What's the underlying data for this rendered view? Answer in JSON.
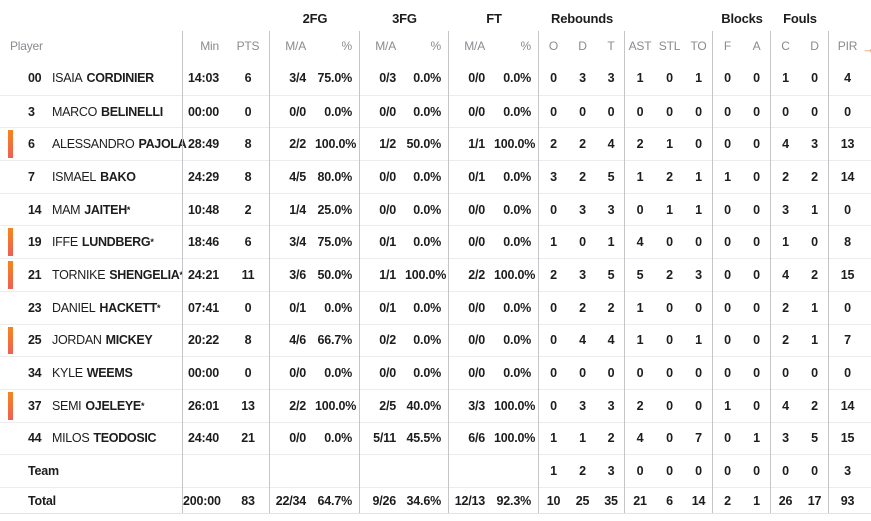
{
  "table": {
    "accent_color": "#f6851c",
    "group_headers": {
      "fg2": "2FG",
      "fg3": "3FG",
      "ft": "FT",
      "rebounds": "Rebounds",
      "blocks": "Blocks",
      "fouls": "Fouls"
    },
    "column_headers": {
      "player": "Player",
      "min": "Min",
      "pts": "PTS",
      "fg2_ma": "M/A",
      "fg2_pct": "%",
      "fg3_ma": "M/A",
      "fg3_pct": "%",
      "ft_ma": "M/A",
      "ft_pct": "%",
      "reb_o": "O",
      "reb_d": "D",
      "reb_t": "T",
      "ast": "AST",
      "stl": "STL",
      "to": "TO",
      "blk_f": "F",
      "blk_a": "A",
      "foul_c": "C",
      "foul_d": "D",
      "pir": "PIR"
    },
    "icons": {
      "scroll_right": "→"
    },
    "rows": [
      {
        "number": "00",
        "first": "ISAIA",
        "last": "CORDINIER",
        "star": "",
        "starter": false,
        "min": "14:03",
        "pts": "6",
        "fg2_ma": "3/4",
        "fg2_pct": "75.0%",
        "fg3_ma": "0/3",
        "fg3_pct": "0.0%",
        "ft_ma": "0/0",
        "ft_pct": "0.0%",
        "o": "0",
        "d": "3",
        "t": "3",
        "ast": "1",
        "stl": "0",
        "to": "1",
        "f": "0",
        "a": "0",
        "c": "1",
        "fd": "0",
        "pir": "4"
      },
      {
        "number": "3",
        "first": "MARCO",
        "last": "BELINELLI",
        "star": "",
        "starter": false,
        "min": "00:00",
        "pts": "0",
        "fg2_ma": "0/0",
        "fg2_pct": "0.0%",
        "fg3_ma": "0/0",
        "fg3_pct": "0.0%",
        "ft_ma": "0/0",
        "ft_pct": "0.0%",
        "o": "0",
        "d": "0",
        "t": "0",
        "ast": "0",
        "stl": "0",
        "to": "0",
        "f": "0",
        "a": "0",
        "c": "0",
        "fd": "0",
        "pir": "0"
      },
      {
        "number": "6",
        "first": "ALESSANDRO",
        "last": "PAJOLA",
        "star": "",
        "starter": true,
        "min": "28:49",
        "pts": "8",
        "fg2_ma": "2/2",
        "fg2_pct": "100.0%",
        "fg3_ma": "1/2",
        "fg3_pct": "50.0%",
        "ft_ma": "1/1",
        "ft_pct": "100.0%",
        "o": "2",
        "d": "2",
        "t": "4",
        "ast": "2",
        "stl": "1",
        "to": "0",
        "f": "0",
        "a": "0",
        "c": "4",
        "fd": "3",
        "pir": "13"
      },
      {
        "number": "7",
        "first": "ISMAEL",
        "last": "BAKO",
        "star": "",
        "starter": false,
        "min": "24:29",
        "pts": "8",
        "fg2_ma": "4/5",
        "fg2_pct": "80.0%",
        "fg3_ma": "0/0",
        "fg3_pct": "0.0%",
        "ft_ma": "0/1",
        "ft_pct": "0.0%",
        "o": "3",
        "d": "2",
        "t": "5",
        "ast": "1",
        "stl": "2",
        "to": "1",
        "f": "1",
        "a": "0",
        "c": "2",
        "fd": "2",
        "pir": "14"
      },
      {
        "number": "14",
        "first": "MAM",
        "last": "JAITEH",
        "star": "*",
        "starter": false,
        "min": "10:48",
        "pts": "2",
        "fg2_ma": "1/4",
        "fg2_pct": "25.0%",
        "fg3_ma": "0/0",
        "fg3_pct": "0.0%",
        "ft_ma": "0/0",
        "ft_pct": "0.0%",
        "o": "0",
        "d": "3",
        "t": "3",
        "ast": "0",
        "stl": "1",
        "to": "1",
        "f": "0",
        "a": "0",
        "c": "3",
        "fd": "1",
        "pir": "0"
      },
      {
        "number": "19",
        "first": "IFFE",
        "last": "LUNDBERG",
        "star": "*",
        "starter": true,
        "min": "18:46",
        "pts": "6",
        "fg2_ma": "3/4",
        "fg2_pct": "75.0%",
        "fg3_ma": "0/1",
        "fg3_pct": "0.0%",
        "ft_ma": "0/0",
        "ft_pct": "0.0%",
        "o": "1",
        "d": "0",
        "t": "1",
        "ast": "4",
        "stl": "0",
        "to": "0",
        "f": "0",
        "a": "0",
        "c": "1",
        "fd": "0",
        "pir": "8"
      },
      {
        "number": "21",
        "first": "TORNIKE",
        "last": "SHENGELIA",
        "star": "*",
        "starter": true,
        "min": "24:21",
        "pts": "11",
        "fg2_ma": "3/6",
        "fg2_pct": "50.0%",
        "fg3_ma": "1/1",
        "fg3_pct": "100.0%",
        "ft_ma": "2/2",
        "ft_pct": "100.0%",
        "o": "2",
        "d": "3",
        "t": "5",
        "ast": "5",
        "stl": "2",
        "to": "3",
        "f": "0",
        "a": "0",
        "c": "4",
        "fd": "2",
        "pir": "15"
      },
      {
        "number": "23",
        "first": "DANIEL",
        "last": "HACKETT",
        "star": "*",
        "starter": false,
        "min": "07:41",
        "pts": "0",
        "fg2_ma": "0/1",
        "fg2_pct": "0.0%",
        "fg3_ma": "0/1",
        "fg3_pct": "0.0%",
        "ft_ma": "0/0",
        "ft_pct": "0.0%",
        "o": "0",
        "d": "2",
        "t": "2",
        "ast": "1",
        "stl": "0",
        "to": "0",
        "f": "0",
        "a": "0",
        "c": "2",
        "fd": "1",
        "pir": "0"
      },
      {
        "number": "25",
        "first": "JORDAN",
        "last": "MICKEY",
        "star": "",
        "starter": true,
        "min": "20:22",
        "pts": "8",
        "fg2_ma": "4/6",
        "fg2_pct": "66.7%",
        "fg3_ma": "0/2",
        "fg3_pct": "0.0%",
        "ft_ma": "0/0",
        "ft_pct": "0.0%",
        "o": "0",
        "d": "4",
        "t": "4",
        "ast": "1",
        "stl": "0",
        "to": "1",
        "f": "0",
        "a": "0",
        "c": "2",
        "fd": "1",
        "pir": "7"
      },
      {
        "number": "34",
        "first": "KYLE",
        "last": "WEEMS",
        "star": "",
        "starter": false,
        "min": "00:00",
        "pts": "0",
        "fg2_ma": "0/0",
        "fg2_pct": "0.0%",
        "fg3_ma": "0/0",
        "fg3_pct": "0.0%",
        "ft_ma": "0/0",
        "ft_pct": "0.0%",
        "o": "0",
        "d": "0",
        "t": "0",
        "ast": "0",
        "stl": "0",
        "to": "0",
        "f": "0",
        "a": "0",
        "c": "0",
        "fd": "0",
        "pir": "0"
      },
      {
        "number": "37",
        "first": "SEMI",
        "last": "OJELEYE",
        "star": "*",
        "starter": true,
        "min": "26:01",
        "pts": "13",
        "fg2_ma": "2/2",
        "fg2_pct": "100.0%",
        "fg3_ma": "2/5",
        "fg3_pct": "40.0%",
        "ft_ma": "3/3",
        "ft_pct": "100.0%",
        "o": "0",
        "d": "3",
        "t": "3",
        "ast": "2",
        "stl": "0",
        "to": "0",
        "f": "1",
        "a": "0",
        "c": "4",
        "fd": "2",
        "pir": "14"
      },
      {
        "number": "44",
        "first": "MILOS",
        "last": "TEODOSIC",
        "star": "",
        "starter": false,
        "min": "24:40",
        "pts": "21",
        "fg2_ma": "0/0",
        "fg2_pct": "0.0%",
        "fg3_ma": "5/11",
        "fg3_pct": "45.5%",
        "ft_ma": "6/6",
        "ft_pct": "100.0%",
        "o": "1",
        "d": "1",
        "t": "2",
        "ast": "4",
        "stl": "0",
        "to": "7",
        "f": "0",
        "a": "1",
        "c": "3",
        "fd": "5",
        "pir": "15"
      },
      {
        "label": "Team",
        "min": "",
        "pts": "",
        "fg2_ma": "",
        "fg2_pct": "",
        "fg3_ma": "",
        "fg3_pct": "",
        "ft_ma": "",
        "ft_pct": "",
        "o": "1",
        "d": "2",
        "t": "3",
        "ast": "0",
        "stl": "0",
        "to": "0",
        "f": "0",
        "a": "0",
        "c": "0",
        "fd": "0",
        "pir": "3"
      },
      {
        "label": "Total",
        "min": "200:00",
        "pts": "83",
        "fg2_ma": "22/34",
        "fg2_pct": "64.7%",
        "fg3_ma": "9/26",
        "fg3_pct": "34.6%",
        "ft_ma": "12/13",
        "ft_pct": "92.3%",
        "o": "10",
        "d": "25",
        "t": "35",
        "ast": "21",
        "stl": "6",
        "to": "14",
        "f": "2",
        "a": "1",
        "c": "26",
        "fd": "17",
        "pir": "93"
      }
    ]
  }
}
